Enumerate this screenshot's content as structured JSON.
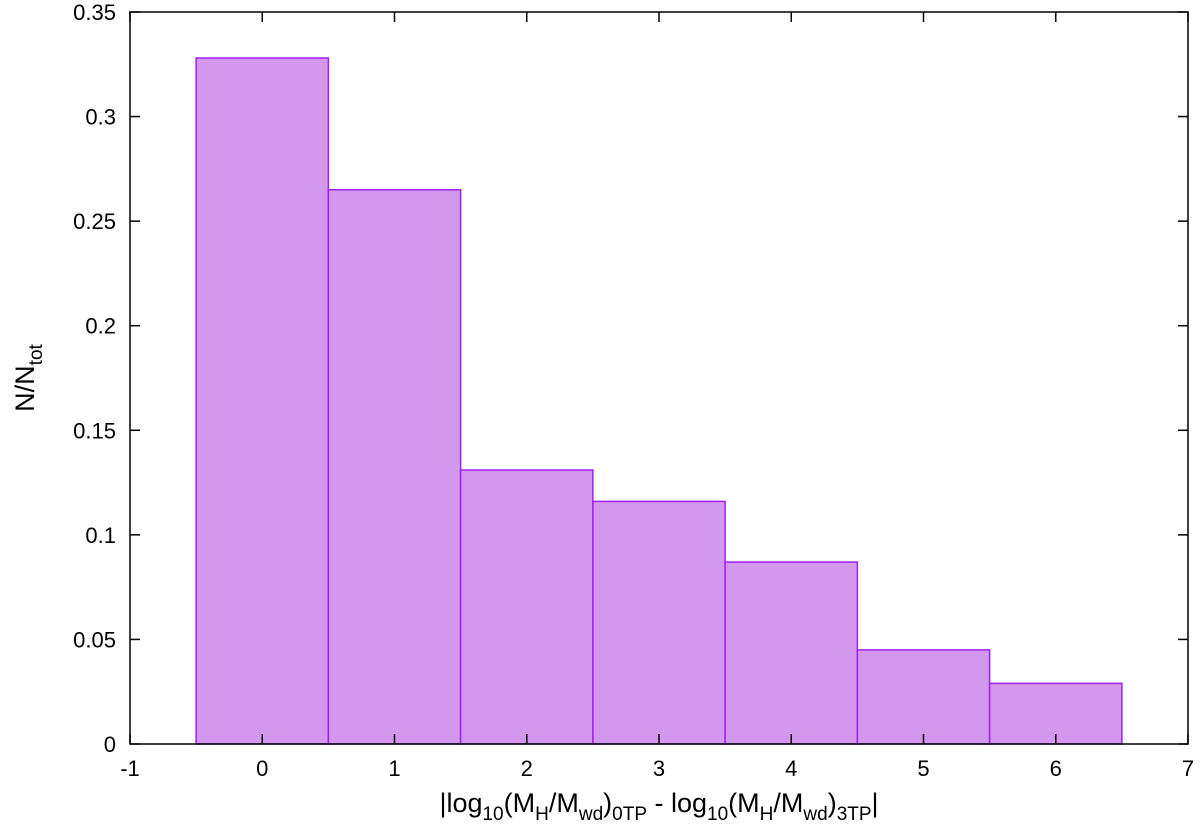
{
  "chart_data": {
    "type": "histogram",
    "bins": [
      -0.5,
      0.5,
      1.5,
      2.5,
      3.5,
      4.5,
      5.5,
      6.5
    ],
    "values": [
      0.328,
      0.265,
      0.131,
      0.116,
      0.087,
      0.045,
      0.029
    ],
    "color": "#d397ed",
    "edge_color": "#a020f0",
    "xlim": [
      -1,
      7
    ],
    "xticks": [
      -1,
      0,
      1,
      2,
      3,
      4,
      5,
      6,
      7
    ],
    "ylim": [
      0,
      0.35
    ],
    "yticks": [
      0,
      0.05,
      0.1,
      0.15,
      0.2,
      0.25,
      0.3,
      0.35
    ],
    "grid": false,
    "xlabel": [
      {
        "text": "|log"
      },
      {
        "text": "10",
        "sub": true
      },
      {
        "text": "(M"
      },
      {
        "text": "H",
        "sub": true
      },
      {
        "text": "/M"
      },
      {
        "text": "wd",
        "sub": true
      },
      {
        "text": ")"
      },
      {
        "text": "0TP",
        "sub": true
      },
      {
        "text": " - log"
      },
      {
        "text": "10",
        "sub": true
      },
      {
        "text": "(M"
      },
      {
        "text": "H",
        "sub": true
      },
      {
        "text": "/M"
      },
      {
        "text": "wd",
        "sub": true
      },
      {
        "text": ")"
      },
      {
        "text": "3TP",
        "sub": true
      },
      {
        "text": "|"
      }
    ],
    "ylabel": [
      {
        "text": "N/N"
      },
      {
        "text": "tot",
        "sub": true
      }
    ]
  }
}
